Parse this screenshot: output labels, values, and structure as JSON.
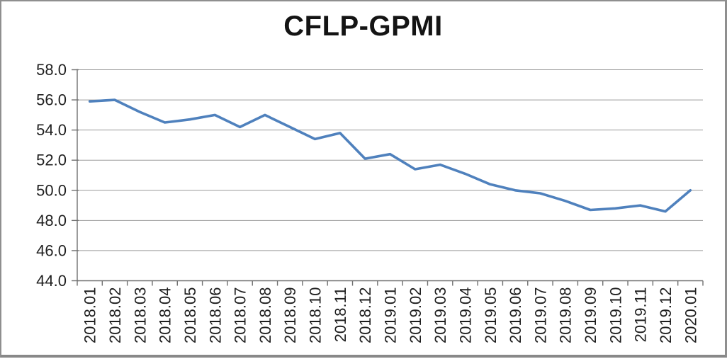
{
  "frame": {
    "background": "#ffffff",
    "border_color": "#8f8f8f"
  },
  "chart_data": {
    "type": "line",
    "title": "CFLP-GPMI",
    "categories": [
      "2018.01",
      "2018.02",
      "2018.03",
      "2018.04",
      "2018.05",
      "2018.06",
      "2018.07",
      "2018.08",
      "2018.09",
      "2018.10",
      "2018.11",
      "2018.12",
      "2019.01",
      "2019.02",
      "2019.03",
      "2019.04",
      "2019.05",
      "2019.06",
      "2019.07",
      "2019.08",
      "2019.09",
      "2019.10",
      "2019.11",
      "2019.12",
      "2020.01"
    ],
    "series": [
      {
        "name": "CFLP-GPMI",
        "color": "#4F81BD",
        "values": [
          55.9,
          56.0,
          55.2,
          54.5,
          54.7,
          55.0,
          54.2,
          55.0,
          54.2,
          53.4,
          53.8,
          52.1,
          52.4,
          51.4,
          51.7,
          51.1,
          50.4,
          50.0,
          49.8,
          49.3,
          48.7,
          48.8,
          49.0,
          48.6,
          50.0
        ]
      }
    ],
    "xlabel": "",
    "ylabel": "",
    "ylim": [
      44.0,
      58.0
    ],
    "ytick_labels": [
      "58.0",
      "56.0",
      "54.0",
      "52.0",
      "50.0",
      "48.0",
      "46.0",
      "44.0"
    ],
    "grid": true,
    "legend": "none",
    "x_label_rotation_deg": 90,
    "colors": {
      "line": "#4F81BD",
      "gridline": "#9a9a9a",
      "axis": "#707070",
      "tick_label": "#1f1f1f",
      "title": "#141414"
    }
  }
}
